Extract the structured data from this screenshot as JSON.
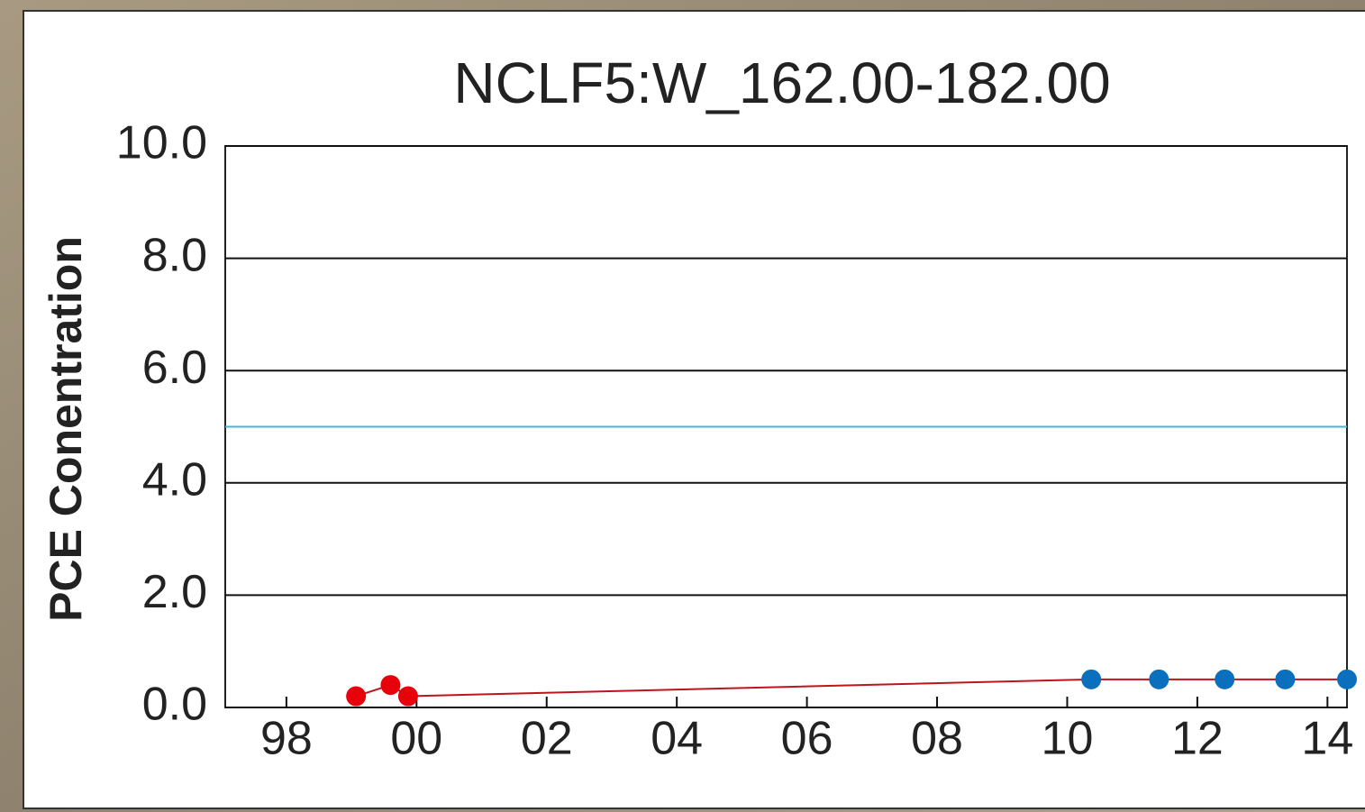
{
  "chart_data": {
    "type": "line",
    "title": "NCLF5:W_162.00-182.00",
    "ylabel": "PCE Conentration",
    "xlim": [
      1997.06,
      2014.3
    ],
    "xticks": [
      {
        "value": 1998,
        "label": "98"
      },
      {
        "value": 2000,
        "label": "00"
      },
      {
        "value": 2002,
        "label": "02"
      },
      {
        "value": 2004,
        "label": "04"
      },
      {
        "value": 2006,
        "label": "06"
      },
      {
        "value": 2008,
        "label": "08"
      },
      {
        "value": 2010,
        "label": "10"
      },
      {
        "value": 2012,
        "label": "12"
      },
      {
        "value": 2014,
        "label": "14"
      }
    ],
    "ylim": [
      0,
      10
    ],
    "yticks": [
      {
        "value": 0,
        "label": "0.0"
      },
      {
        "value": 2,
        "label": "2.0"
      },
      {
        "value": 4,
        "label": "4.0"
      },
      {
        "value": 6,
        "label": "6.0"
      },
      {
        "value": 8,
        "label": "8.0"
      },
      {
        "value": 10,
        "label": "10.0"
      }
    ],
    "grid": true,
    "reference_line": {
      "value": 5,
      "color": "#4fb4d2"
    },
    "series": [
      {
        "color": "#c0141c",
        "x": [
          1999.07,
          1999.6,
          1999.87,
          2010.37,
          2011.41,
          2012.42,
          2013.35,
          2014.3
        ],
        "values": [
          0.2,
          0.4,
          0.2,
          0.5,
          0.5,
          0.5,
          0.5,
          0.5
        ],
        "marker_colors": [
          "#e8000b",
          "#e8000b",
          "#e8000b",
          "#0a6fbd",
          "#0a6fbd",
          "#0a6fbd",
          "#0a6fbd",
          "#0a6fbd"
        ]
      }
    ]
  }
}
